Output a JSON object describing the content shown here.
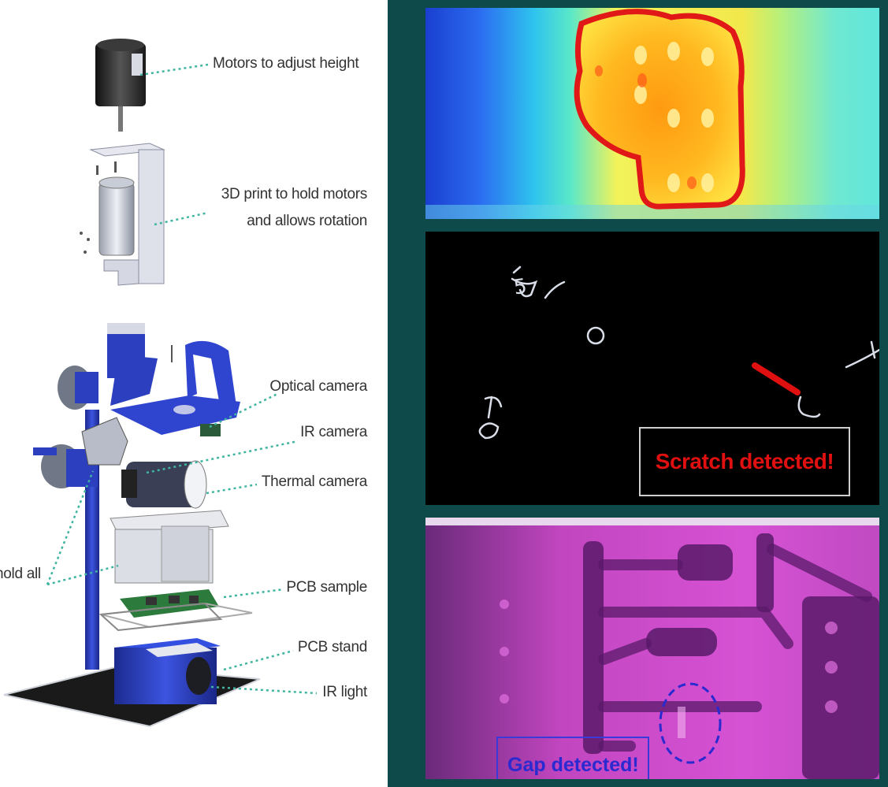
{
  "labels": {
    "motors": "Motors to adjust height",
    "print_line1": "3D print to hold motors",
    "print_line2": "and allows rotation",
    "optical": "Optical camera",
    "ir_camera": "IR camera",
    "thermal": "Thermal camera",
    "hold_all": "hold all",
    "pcb_sample": "PCB sample",
    "pcb_stand": "PCB stand",
    "ir_light": "IR light"
  },
  "panels": {
    "scratch_text": "Scratch detected!",
    "gap_text": "Gap detected!",
    "scratch_glyphs": [
      "5",
      "o",
      "a",
      "p"
    ]
  },
  "colors": {
    "frame": "#0f4a4b",
    "leader": "#3fb5a0",
    "apparatus_blue": "#2b3fbf",
    "hotspot_outline": "#e01818",
    "scratch_mark": "#e01010",
    "gap_mark": "#2a2ad0"
  }
}
